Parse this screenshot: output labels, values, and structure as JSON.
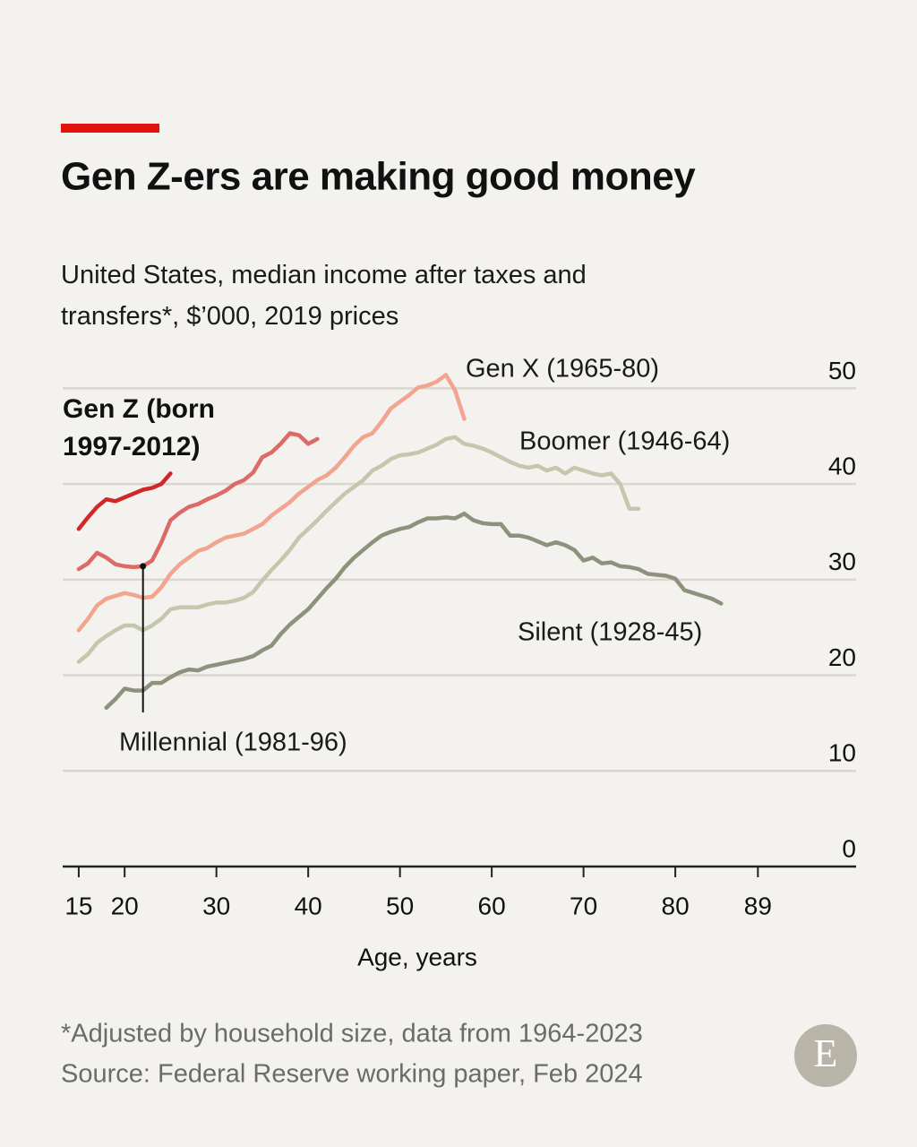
{
  "chart_data": {
    "type": "line",
    "title": "Gen Z-ers are making good money",
    "subtitle": "United States, median income after taxes and transfers*, $’000, 2019 prices",
    "x_label": "Age, years",
    "footnote": "*Adjusted by household size, data from 1964-2023",
    "source": "Source: Federal Reserve working paper, Feb 2024",
    "logo": "E",
    "xlim": [
      13.25,
      99.7
    ],
    "xticks": [
      15,
      20,
      30,
      40,
      50,
      60,
      70,
      80,
      89
    ],
    "ylim": [
      0,
      55
    ],
    "yticks": [
      0,
      10,
      20,
      30,
      40,
      50
    ],
    "grid": true,
    "series": [
      {
        "name": "Gen Z (born 1997-2012)",
        "color": "#d0282a",
        "x": [
          15,
          16,
          17,
          18,
          19,
          20,
          21,
          22,
          23,
          24,
          25
        ],
        "values": [
          35.3,
          36.5,
          37.6,
          38.4,
          38.2,
          38.6,
          39.0,
          39.4,
          39.6,
          40.0,
          41.1
        ]
      },
      {
        "name": "Millennial (1981-96)",
        "color": "#dc6a66",
        "x": [
          15,
          16,
          17,
          18,
          19,
          20,
          21,
          22,
          23,
          24,
          25,
          26,
          27,
          28,
          29,
          30,
          31,
          32,
          33,
          34,
          35,
          36,
          37,
          38,
          39,
          40,
          41
        ],
        "values": [
          31.1,
          31.7,
          32.8,
          32.3,
          31.6,
          31.4,
          31.3,
          31.4,
          32.0,
          33.9,
          36.2,
          37.0,
          37.6,
          37.9,
          38.4,
          38.8,
          39.3,
          40.0,
          40.4,
          41.2,
          42.8,
          43.3,
          44.2,
          45.3,
          45.1,
          44.2,
          44.7
        ]
      },
      {
        "name": "Gen X (1965-80)",
        "color": "#f2a48f",
        "x": [
          15,
          16,
          17,
          18,
          19,
          20,
          21,
          22,
          23,
          24,
          25,
          26,
          27,
          28,
          29,
          30,
          31,
          32,
          33,
          34,
          35,
          36,
          37,
          38,
          39,
          40,
          41,
          42,
          43,
          44,
          45,
          46,
          47,
          48,
          49,
          50,
          51,
          52,
          53,
          54,
          55,
          56,
          57
        ],
        "values": [
          24.7,
          25.9,
          27.3,
          28.0,
          28.3,
          28.6,
          28.4,
          28.1,
          28.2,
          29.2,
          30.6,
          31.6,
          32.3,
          33.0,
          33.3,
          33.9,
          34.4,
          34.6,
          34.8,
          35.3,
          35.8,
          36.7,
          37.4,
          38.1,
          39.0,
          39.7,
          40.4,
          40.9,
          41.7,
          42.8,
          44.0,
          44.9,
          45.3,
          46.5,
          47.9,
          48.6,
          49.3,
          50.1,
          50.3,
          50.7,
          51.4,
          49.8,
          46.8
        ]
      },
      {
        "name": "Boomer (1946-64)",
        "color": "#c4c7ad",
        "x": [
          15,
          16,
          17,
          18,
          19,
          20,
          21,
          22,
          23,
          24,
          25,
          26,
          27,
          28,
          29,
          30,
          31,
          32,
          33,
          34,
          35,
          36,
          37,
          38,
          39,
          40,
          41,
          42,
          43,
          44,
          45,
          46,
          47,
          48,
          49,
          50,
          51,
          52,
          53,
          54,
          55,
          56,
          57,
          58,
          59,
          60,
          61,
          62,
          63,
          64,
          65,
          66,
          67,
          68,
          69,
          70,
          71,
          72,
          73,
          74,
          75,
          76
        ],
        "values": [
          21.4,
          22.2,
          23.4,
          24.1,
          24.7,
          25.2,
          25.2,
          24.7,
          25.2,
          25.9,
          26.9,
          27.1,
          27.1,
          27.1,
          27.4,
          27.6,
          27.6,
          27.8,
          28.1,
          28.7,
          29.9,
          31.0,
          32.0,
          33.1,
          34.4,
          35.3,
          36.2,
          37.2,
          38.1,
          39.0,
          39.7,
          40.4,
          41.4,
          41.9,
          42.6,
          43.0,
          43.1,
          43.3,
          43.7,
          44.1,
          44.7,
          44.9,
          44.2,
          44.0,
          43.7,
          43.3,
          42.8,
          42.3,
          41.9,
          41.7,
          41.9,
          41.4,
          41.7,
          41.1,
          41.7,
          41.4,
          41.1,
          40.9,
          41.1,
          40.0,
          37.4,
          37.4
        ]
      },
      {
        "name": "Silent (1928-45)",
        "color": "#8e917c",
        "x": [
          18,
          19,
          20,
          21,
          22,
          23,
          24,
          25,
          26,
          27,
          28,
          29,
          30,
          31,
          32,
          33,
          34,
          35,
          36,
          37,
          38,
          39,
          40,
          41,
          42,
          43,
          44,
          45,
          46,
          47,
          48,
          49,
          50,
          51,
          52,
          53,
          54,
          55,
          56,
          57,
          58,
          59,
          60,
          61,
          62,
          63,
          64,
          65,
          66,
          67,
          68,
          69,
          70,
          71,
          72,
          73,
          74,
          75,
          76,
          77,
          78,
          79,
          80,
          81,
          82,
          83,
          84,
          85
        ],
        "values": [
          16.6,
          17.5,
          18.6,
          18.4,
          18.4,
          19.2,
          19.2,
          19.8,
          20.3,
          20.6,
          20.5,
          20.9,
          21.1,
          21.3,
          21.5,
          21.7,
          22.0,
          22.6,
          23.1,
          24.3,
          25.3,
          26.1,
          26.9,
          28.0,
          29.1,
          30.1,
          31.3,
          32.3,
          33.1,
          33.9,
          34.6,
          35.0,
          35.3,
          35.5,
          36.0,
          36.4,
          36.4,
          36.5,
          36.4,
          36.9,
          36.2,
          35.9,
          35.8,
          35.8,
          34.6,
          34.6,
          34.4,
          34.0,
          33.6,
          33.9,
          33.6,
          33.1,
          32.0,
          32.3,
          31.7,
          31.8,
          31.4,
          31.3,
          31.1,
          30.6,
          30.5,
          30.4,
          30.1,
          28.9,
          28.6,
          28.3,
          28.0,
          27.5
        ]
      }
    ]
  }
}
